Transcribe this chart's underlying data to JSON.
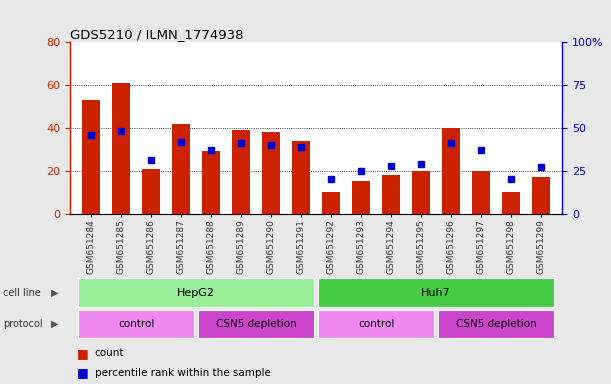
{
  "title": "GDS5210 / ILMN_1774938",
  "samples": [
    "GSM651284",
    "GSM651285",
    "GSM651286",
    "GSM651287",
    "GSM651288",
    "GSM651289",
    "GSM651290",
    "GSM651291",
    "GSM651292",
    "GSM651293",
    "GSM651294",
    "GSM651295",
    "GSM651296",
    "GSM651297",
    "GSM651298",
    "GSM651299"
  ],
  "counts": [
    53,
    61,
    21,
    42,
    29,
    39,
    38,
    34,
    10,
    15,
    18,
    20,
    40,
    20,
    10,
    17
  ],
  "percentile_ranks": [
    46,
    48,
    31,
    42,
    37,
    41,
    40,
    39,
    20,
    25,
    28,
    29,
    41,
    37,
    20,
    27
  ],
  "bar_color": "#cc2200",
  "dot_color": "#0000cc",
  "left_ylim": [
    0,
    80
  ],
  "right_ylim": [
    0,
    100
  ],
  "left_yticks": [
    0,
    20,
    40,
    60,
    80
  ],
  "right_yticks": [
    0,
    25,
    50,
    75,
    100
  ],
  "right_yticklabels": [
    "0",
    "25",
    "50",
    "75",
    "100%"
  ],
  "cell_line_groups": [
    {
      "label": "HepG2",
      "start": 0,
      "end": 7,
      "color": "#99ee99"
    },
    {
      "label": "Huh7",
      "start": 8,
      "end": 15,
      "color": "#44cc44"
    }
  ],
  "protocol_groups": [
    {
      "label": "control",
      "start": 0,
      "end": 3,
      "color": "#ee88ee"
    },
    {
      "label": "CSN5 depletion",
      "start": 4,
      "end": 7,
      "color": "#cc44cc"
    },
    {
      "label": "control",
      "start": 8,
      "end": 11,
      "color": "#ee88ee"
    },
    {
      "label": "CSN5 depletion",
      "start": 12,
      "end": 15,
      "color": "#cc44cc"
    }
  ],
  "legend_count_color": "#cc2200",
  "legend_dot_color": "#0000cc",
  "background_color": "#e8e8e8",
  "plot_bg_color": "#ffffff",
  "left_axis_color": "#cc2200",
  "right_axis_color": "#0000cc"
}
